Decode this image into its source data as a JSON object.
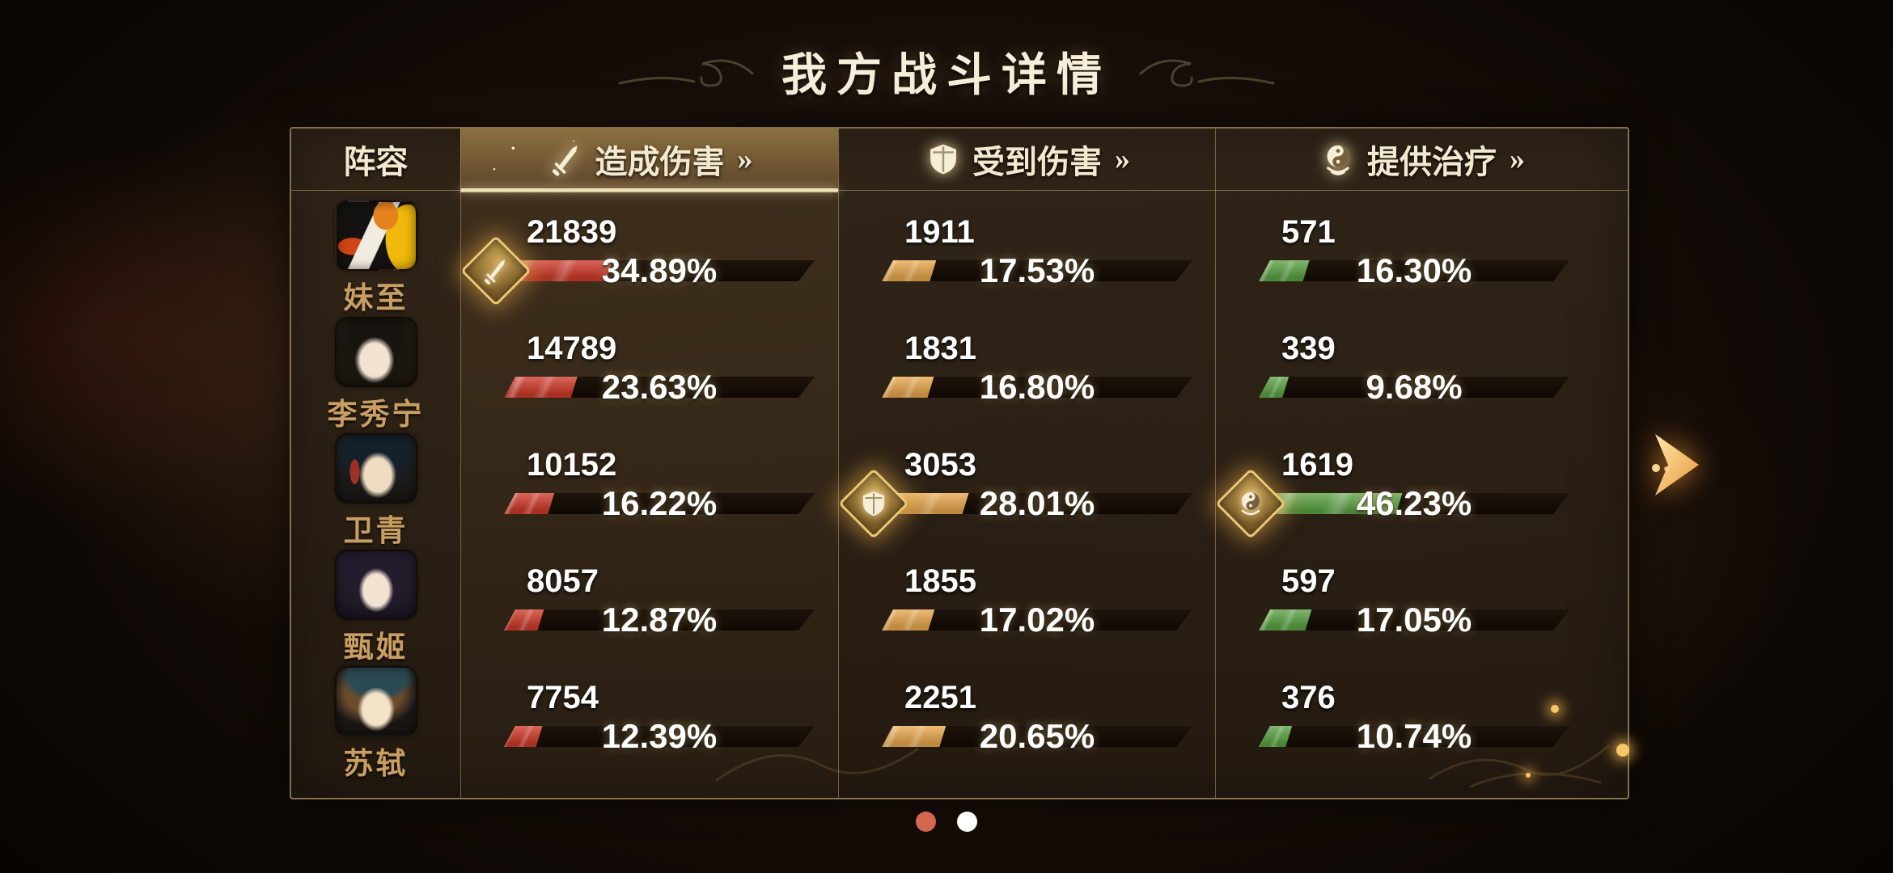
{
  "title": "我方战斗详情",
  "table": {
    "lineup_header": "阵容",
    "columns": [
      {
        "key": "damage_dealt",
        "label": "造成伤害",
        "more": "»",
        "icon": "sword-icon",
        "selected": true,
        "fill_color": "#cf3a2a"
      },
      {
        "key": "damage_taken",
        "label": "受到伤害",
        "more": "»",
        "icon": "shield-icon",
        "selected": false,
        "fill_color": "#e8a84e"
      },
      {
        "key": "healing",
        "label": "提供治疗",
        "more": "»",
        "icon": "taiji-icon",
        "selected": false,
        "fill_color": "#5ba344"
      }
    ],
    "rows": [
      {
        "name": "妹至",
        "stats": {
          "damage_dealt": {
            "value": "21839",
            "percent": "34.89%",
            "pct": 34.89,
            "top": true
          },
          "damage_taken": {
            "value": "1911",
            "percent": "17.53%",
            "pct": 17.53,
            "top": false
          },
          "healing": {
            "value": "571",
            "percent": "16.30%",
            "pct": 16.3,
            "top": false
          }
        }
      },
      {
        "name": "李秀宁",
        "stats": {
          "damage_dealt": {
            "value": "14789",
            "percent": "23.63%",
            "pct": 23.63,
            "top": false
          },
          "damage_taken": {
            "value": "1831",
            "percent": "16.80%",
            "pct": 16.8,
            "top": false
          },
          "healing": {
            "value": "339",
            "percent": "9.68%",
            "pct": 9.68,
            "top": false
          }
        }
      },
      {
        "name": "卫青",
        "stats": {
          "damage_dealt": {
            "value": "10152",
            "percent": "16.22%",
            "pct": 16.22,
            "top": false
          },
          "damage_taken": {
            "value": "3053",
            "percent": "28.01%",
            "pct": 28.01,
            "top": true
          },
          "healing": {
            "value": "1619",
            "percent": "46.23%",
            "pct": 46.23,
            "top": true
          }
        }
      },
      {
        "name": "甄姬",
        "stats": {
          "damage_dealt": {
            "value": "8057",
            "percent": "12.87%",
            "pct": 12.87,
            "top": false
          },
          "damage_taken": {
            "value": "1855",
            "percent": "17.02%",
            "pct": 17.02,
            "top": false
          },
          "healing": {
            "value": "597",
            "percent": "17.05%",
            "pct": 17.05,
            "top": false
          }
        }
      },
      {
        "name": "苏轼",
        "stats": {
          "damage_dealt": {
            "value": "7754",
            "percent": "12.39%",
            "pct": 12.39,
            "top": false
          },
          "damage_taken": {
            "value": "2251",
            "percent": "20.65%",
            "pct": 20.65,
            "top": false
          },
          "healing": {
            "value": "376",
            "percent": "10.74%",
            "pct": 10.74,
            "top": false
          }
        }
      }
    ]
  },
  "pagination": {
    "dots": [
      {
        "active": true
      },
      {
        "active": false
      }
    ],
    "active_color": "#d4674f",
    "inactive_color": "#ffffff"
  },
  "nav": {
    "arrow_color": "#f3c268"
  }
}
